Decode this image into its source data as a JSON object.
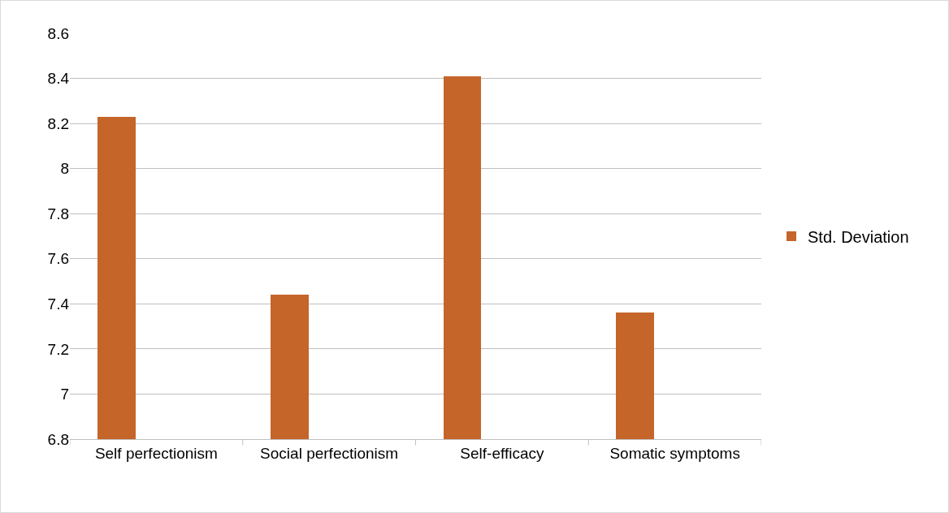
{
  "chart_data": {
    "type": "bar",
    "categories": [
      "Self perfectionism",
      "Social perfectionism",
      "Self-efficacy",
      "Somatic symptoms"
    ],
    "series": [
      {
        "name": "Std. Deviation",
        "color": "#c5652a",
        "values": [
          8.23,
          7.44,
          8.41,
          7.36
        ]
      }
    ],
    "ylim": [
      6.8,
      8.6
    ],
    "yticks": [
      6.8,
      7,
      7.2,
      7.4,
      7.6,
      7.8,
      8,
      8.2,
      8.4,
      8.6
    ],
    "grid": "y",
    "legend": "right"
  }
}
